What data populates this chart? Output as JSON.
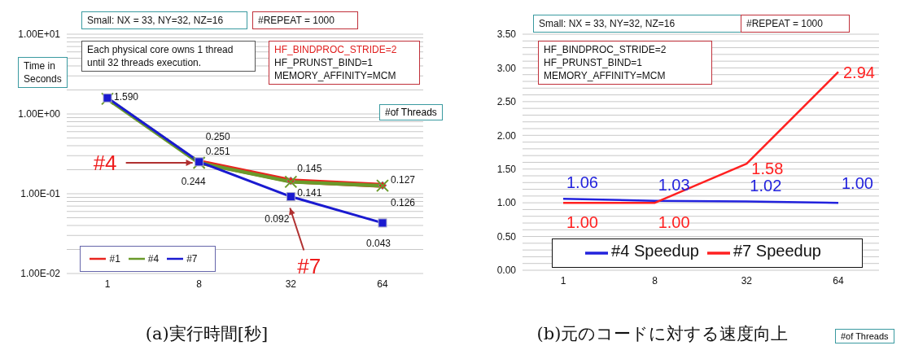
{
  "chart_data": [
    {
      "type": "line",
      "title": "(a)実行時間[秒]",
      "xlabel": "#of Threads",
      "ylabel": "Time in Seconds",
      "categories": [
        "1",
        "8",
        "32",
        "64"
      ],
      "log": "y",
      "ylim": [
        0.01,
        10
      ],
      "yticks": [
        {
          "value": 0.01,
          "label": "1.00E-02"
        },
        {
          "value": 0.02,
          "label": null
        },
        {
          "value": 0.03,
          "label": null
        },
        {
          "value": 0.04,
          "label": null
        },
        {
          "value": 0.05,
          "label": null
        },
        {
          "value": 0.06,
          "label": null
        },
        {
          "value": 0.07,
          "label": null
        },
        {
          "value": 0.08,
          "label": null
        },
        {
          "value": 0.09,
          "label": null
        },
        {
          "value": 0.1,
          "label": "1.00E-01"
        },
        {
          "value": 0.2,
          "label": null
        },
        {
          "value": 0.3,
          "label": null
        },
        {
          "value": 0.4,
          "label": null
        },
        {
          "value": 0.5,
          "label": null
        },
        {
          "value": 0.6,
          "label": null
        },
        {
          "value": 0.7,
          "label": null
        },
        {
          "value": 0.8,
          "label": null
        },
        {
          "value": 0.9,
          "label": null
        },
        {
          "value": 1,
          "label": "1.00E+00"
        },
        {
          "value": 2,
          "label": null
        },
        {
          "value": 3,
          "label": null
        },
        {
          "value": 4,
          "label": null
        },
        {
          "value": 5,
          "label": null
        },
        {
          "value": 6,
          "label": null
        },
        {
          "value": 7,
          "label": null
        },
        {
          "value": 8,
          "label": null
        },
        {
          "value": 9,
          "label": null
        },
        {
          "value": 10,
          "label": "1.00E+01"
        }
      ],
      "grid": "y",
      "legend": "bottom left",
      "series": [
        {
          "name": "#1",
          "color": "#e8251f",
          "marker": "diamond",
          "values": [
            null,
            0.25,
            0.145,
            0.127
          ],
          "value_labels": [
            null,
            "0.250",
            "0.145",
            "0.127"
          ]
        },
        {
          "name": "#4",
          "color": "#6a9a2a",
          "marker": "cross",
          "values": [
            1.55,
            0.244,
            0.141,
            0.126
          ],
          "value_labels": [
            null,
            "0.244",
            "0.141",
            "0.126"
          ]
        },
        {
          "name": "#7",
          "color": "#1a1ad0",
          "marker": "square",
          "values": [
            1.59,
            0.251,
            0.092,
            0.043
          ],
          "value_labels": [
            "1.590",
            "0.251",
            "0.092",
            "0.043"
          ]
        }
      ],
      "annotations": [
        "Small: NX = 33, NY=32, NZ=16",
        "#REPEAT = 1000",
        "Each physical core owns 1 thread\nuntil 32 threads execution.",
        "HF_BINDPROC_STRIDE=2\nHF_PRUNST_BIND=1\nMEMORY_AFFINITY=MCM",
        {
          "text": "#4",
          "x": "8",
          "y": 0.244
        },
        {
          "text": "#7",
          "x": "32",
          "y": 0.092
        }
      ]
    },
    {
      "type": "line",
      "title": "(b)元のコードに対する速度向上",
      "xlabel": "#of Threads",
      "categories": [
        "1",
        "8",
        "32",
        "64"
      ],
      "ylim": [
        0,
        3.5
      ],
      "yticks": [
        {
          "value": 0,
          "label": "0.00"
        },
        {
          "value": 0.1,
          "label": null
        },
        {
          "value": 0.2,
          "label": null
        },
        {
          "value": 0.3,
          "label": null
        },
        {
          "value": 0.4,
          "label": null
        },
        {
          "value": 0.5,
          "label": "0.50"
        },
        {
          "value": 0.6,
          "label": null
        },
        {
          "value": 0.7,
          "label": null
        },
        {
          "value": 0.8,
          "label": null
        },
        {
          "value": 0.9,
          "label": null
        },
        {
          "value": 1,
          "label": "1.00"
        },
        {
          "value": 1.1,
          "label": null
        },
        {
          "value": 1.2,
          "label": null
        },
        {
          "value": 1.3,
          "label": null
        },
        {
          "value": 1.4,
          "label": null
        },
        {
          "value": 1.5,
          "label": "1.50"
        },
        {
          "value": 1.6,
          "label": null
        },
        {
          "value": 1.7,
          "label": null
        },
        {
          "value": 1.8,
          "label": null
        },
        {
          "value": 1.9,
          "label": null
        },
        {
          "value": 2,
          "label": "2.00"
        },
        {
          "value": 2.1,
          "label": null
        },
        {
          "value": 2.2,
          "label": null
        },
        {
          "value": 2.3,
          "label": null
        },
        {
          "value": 2.4,
          "label": null
        },
        {
          "value": 2.5,
          "label": "2.50"
        },
        {
          "value": 2.6,
          "label": null
        },
        {
          "value": 2.7,
          "label": null
        },
        {
          "value": 2.8,
          "label": null
        },
        {
          "value": 2.9,
          "label": null
        },
        {
          "value": 3,
          "label": "3.00"
        },
        {
          "value": 3.1,
          "label": null
        },
        {
          "value": 3.2,
          "label": null
        },
        {
          "value": 3.3,
          "label": null
        },
        {
          "value": 3.4,
          "label": null
        },
        {
          "value": 3.5,
          "label": "3.50"
        }
      ],
      "grid": "y",
      "legend": "bottom",
      "marker": "none",
      "series": [
        {
          "name": "#4 Speedup",
          "color": "#2222dd",
          "values": [
            1.06,
            1.03,
            1.02,
            1.0
          ],
          "value_labels": [
            "1.06",
            "1.03",
            "1.02",
            "1.00"
          ]
        },
        {
          "name": "#7 Speedup",
          "color": "#ff2020",
          "values": [
            1.0,
            1.0,
            1.58,
            2.94
          ],
          "value_labels": [
            "1.00",
            "1.00",
            "1.58",
            "2.94"
          ]
        }
      ],
      "annotations": [
        "Small: NX = 33, NY=32, NZ=16",
        "#REPEAT = 1000",
        "HF_BINDPROC_STRIDE=2\nHF_PRUNST_BIND=1\nMEMORY_AFFINITY=MCM"
      ]
    }
  ]
}
